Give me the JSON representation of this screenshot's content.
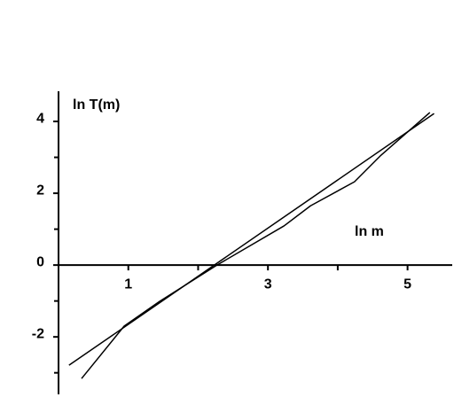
{
  "chart_data": {
    "type": "line",
    "y_label": "ln T(m)",
    "x_label": "ln m",
    "xlim": [
      0,
      5.64
    ],
    "ylim": [
      -3.6,
      4.84
    ],
    "xticks": [
      1,
      3,
      5
    ],
    "xminorticks": [
      2,
      4
    ],
    "yticks": [
      -2,
      0,
      2,
      4
    ],
    "yminorticks": [
      -3,
      -1,
      1,
      3
    ],
    "series": [
      {
        "color": "#000000",
        "x": [
          0.15,
          5.38
        ],
        "values": [
          -2.79,
          4.22
        ]
      },
      {
        "color": "#000000",
        "x": [
          0.33,
          0.94,
          1.45,
          2.27,
          3.23,
          3.61,
          4.24,
          4.62,
          5.32
        ],
        "values": [
          -3.16,
          -1.7,
          -1.01,
          0,
          1.09,
          1.65,
          2.32,
          3.06,
          4.25
        ]
      }
    ]
  }
}
